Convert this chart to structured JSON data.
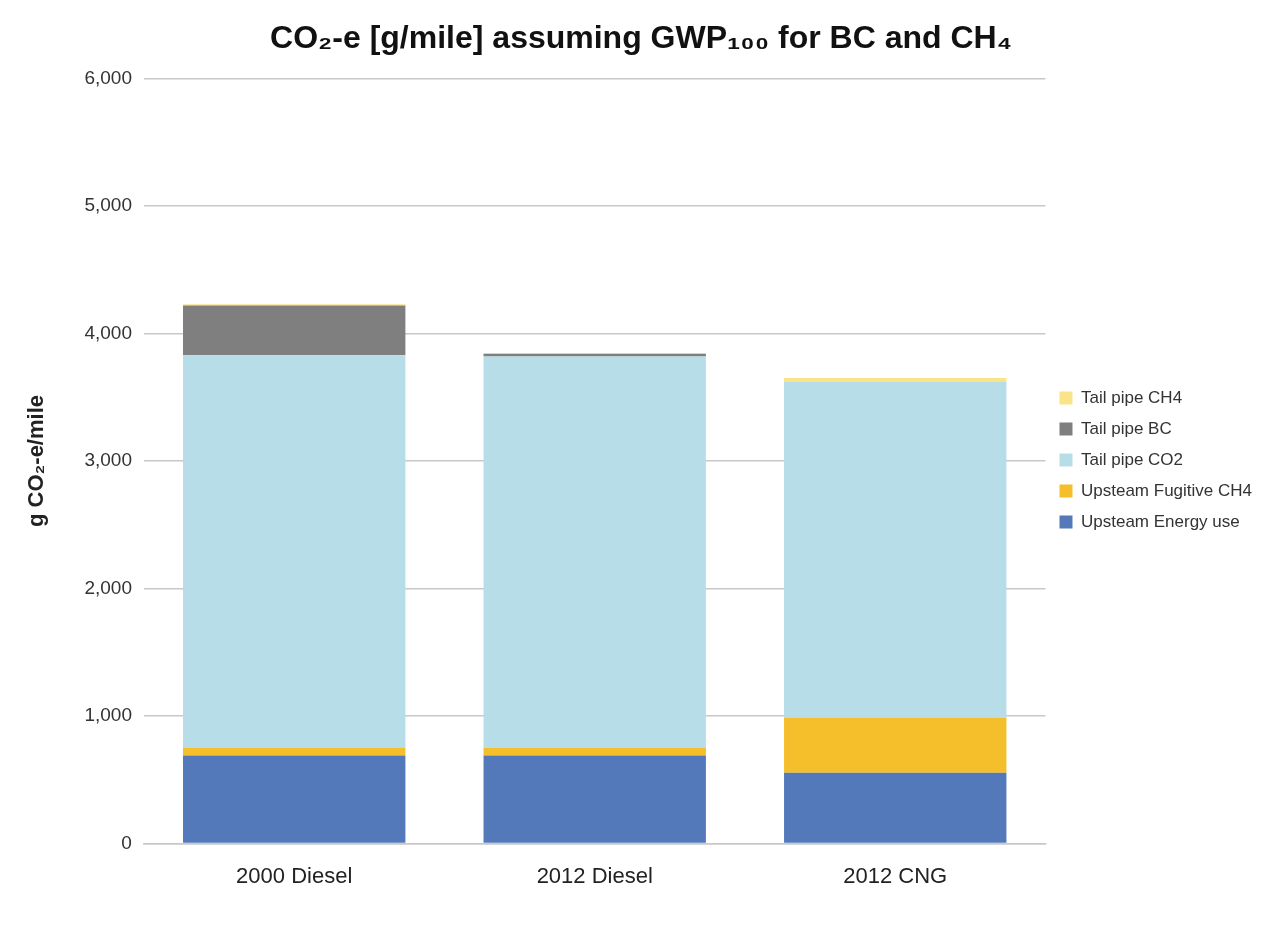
{
  "chart_data": {
    "type": "bar",
    "title": "CO₂-e [g/mile] assuming GWP₁₀₀ for BC and CH₄",
    "ylabel": "g CO₂-e/mile",
    "categories": [
      "2000 Diesel",
      "2012 Diesel",
      "2012 CNG"
    ],
    "stacked": true,
    "series": [
      {
        "name": "Upsteam Energy use",
        "color": "#5479bb",
        "values": [
          690,
          690,
          555
        ]
      },
      {
        "name": "Upsteam Fugitive CH4",
        "color": "#f4bf2a",
        "values": [
          60,
          60,
          433
        ]
      },
      {
        "name": "Tail pipe CO2",
        "color": "#b7dde8",
        "values": [
          3080,
          3070,
          2632
        ]
      },
      {
        "name": "Tail pipe BC",
        "color": "#7f7f7f",
        "values": [
          390,
          20,
          0
        ]
      },
      {
        "name": "Tail pipe CH4",
        "color": "#fbe38a",
        "values": [
          10,
          5,
          30
        ]
      }
    ],
    "ylim": [
      0,
      6000
    ],
    "yticks": [
      {
        "value": 0,
        "label": "0"
      },
      {
        "value": 1000,
        "label": "1,000"
      },
      {
        "value": 2000,
        "label": "2,000"
      },
      {
        "value": 3000,
        "label": "3,000"
      },
      {
        "value": 4000,
        "label": "4,000"
      },
      {
        "value": 5000,
        "label": "5,000"
      },
      {
        "value": 6000,
        "label": "6,000"
      }
    ],
    "grid": "y",
    "legend": "right"
  }
}
